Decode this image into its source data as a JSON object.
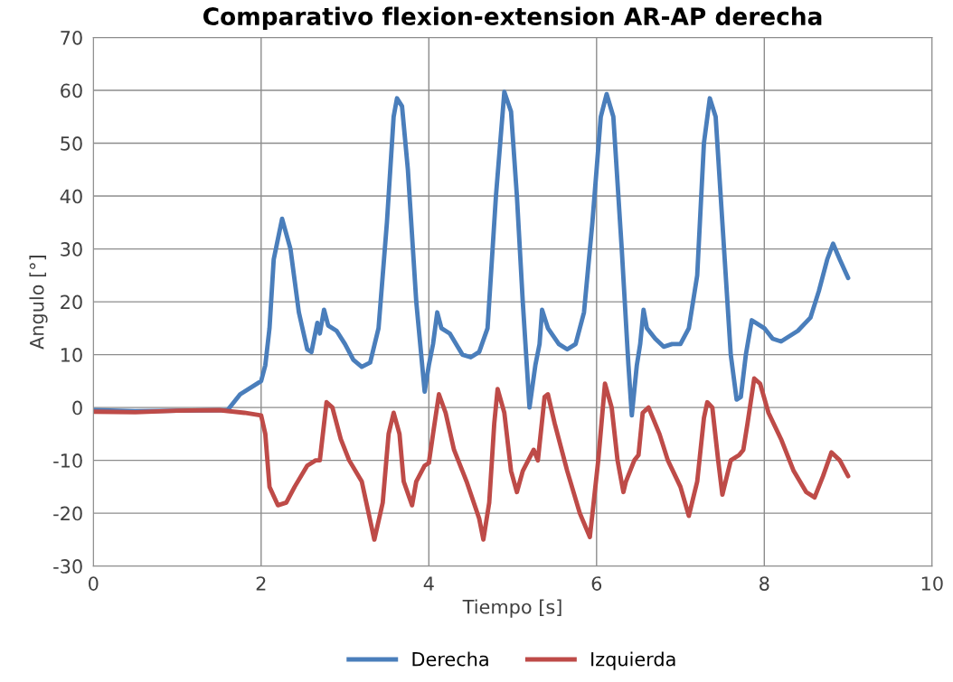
{
  "chart_data": {
    "type": "line",
    "title": "Comparativo flexion-extension AR-AP derecha",
    "xlabel": "Tiempo [s]",
    "ylabel": "Angulo [°]",
    "xlim": [
      0,
      10
    ],
    "xticks": [
      0,
      2,
      4,
      6,
      8,
      10
    ],
    "ylim": [
      -30,
      70
    ],
    "yticks": [
      -30,
      -20,
      -10,
      0,
      10,
      20,
      30,
      40,
      50,
      60,
      70
    ],
    "grid": true,
    "legend": "bottom",
    "marker": "none",
    "line_style": "solid",
    "series": [
      {
        "name": "Derecha",
        "color": "#4a7ebb",
        "x": [
          0,
          0.5,
          1,
          1.6,
          1.75,
          2.0,
          2.05,
          2.1,
          2.15,
          2.25,
          2.35,
          2.45,
          2.55,
          2.6,
          2.67,
          2.7,
          2.75,
          2.8,
          2.9,
          3.0,
          3.1,
          3.2,
          3.3,
          3.4,
          3.5,
          3.58,
          3.62,
          3.68,
          3.75,
          3.85,
          3.95,
          4.0,
          4.05,
          4.1,
          4.15,
          4.25,
          4.4,
          4.5,
          4.6,
          4.7,
          4.8,
          4.9,
          4.98,
          5.05,
          5.12,
          5.2,
          5.27,
          5.32,
          5.35,
          5.42,
          5.55,
          5.65,
          5.75,
          5.85,
          5.95,
          6.05,
          6.12,
          6.2,
          6.3,
          6.38,
          6.42,
          6.48,
          6.52,
          6.56,
          6.6,
          6.7,
          6.8,
          6.9,
          7.0,
          7.1,
          7.2,
          7.28,
          7.35,
          7.42,
          7.5,
          7.6,
          7.67,
          7.72,
          7.78,
          7.85,
          8.0,
          8.1,
          8.2,
          8.4,
          8.55,
          8.65,
          8.75,
          8.82,
          8.9,
          9.0
        ],
        "values": [
          -0.5,
          -0.7,
          -0.6,
          -0.5,
          2.5,
          5,
          8,
          15,
          28,
          35.7,
          30,
          18,
          11,
          10.5,
          16,
          14,
          18.5,
          15.5,
          14.5,
          12,
          9,
          7.7,
          8.5,
          15,
          35,
          55,
          58.5,
          57,
          45,
          20,
          3,
          8,
          12,
          18,
          15,
          14,
          10,
          9.5,
          10.5,
          15,
          40,
          59.7,
          56,
          40,
          20,
          0,
          8,
          12,
          18.5,
          15,
          12,
          11,
          12,
          18,
          35,
          55,
          59.3,
          55,
          30,
          8,
          -1.5,
          8,
          12,
          18.5,
          15,
          13,
          11.5,
          12,
          12,
          15,
          25,
          50,
          58.5,
          55,
          35,
          10,
          1.5,
          2,
          10,
          16.5,
          15,
          13,
          12.5,
          14.5,
          17,
          22,
          28,
          31,
          28,
          24.5
        ]
      },
      {
        "name": "Izquierda",
        "color": "#be4b48",
        "x": [
          0,
          0.5,
          1,
          1.5,
          1.8,
          2.0,
          2.05,
          2.1,
          2.2,
          2.3,
          2.4,
          2.55,
          2.65,
          2.7,
          2.78,
          2.85,
          2.95,
          3.05,
          3.2,
          3.35,
          3.45,
          3.52,
          3.58,
          3.65,
          3.7,
          3.8,
          3.85,
          3.95,
          4.0,
          4.05,
          4.12,
          4.2,
          4.3,
          4.45,
          4.6,
          4.65,
          4.72,
          4.78,
          4.82,
          4.9,
          4.98,
          5.05,
          5.12,
          5.25,
          5.3,
          5.38,
          5.42,
          5.5,
          5.65,
          5.8,
          5.92,
          6.02,
          6.1,
          6.18,
          6.25,
          6.32,
          6.35,
          6.45,
          6.5,
          6.55,
          6.62,
          6.75,
          6.85,
          7.0,
          7.1,
          7.2,
          7.28,
          7.32,
          7.38,
          7.45,
          7.5,
          7.6,
          7.7,
          7.75,
          7.8,
          7.88,
          7.95,
          8.05,
          8.2,
          8.35,
          8.5,
          8.6,
          8.7,
          8.8,
          8.9,
          9.0
        ],
        "values": [
          -0.8,
          -0.9,
          -0.6,
          -0.5,
          -1,
          -1.5,
          -5,
          -15,
          -18.5,
          -18,
          -15,
          -11,
          -10,
          -10,
          1,
          0,
          -6,
          -10,
          -14,
          -25,
          -18,
          -5,
          -1,
          -5,
          -14,
          -18.5,
          -14,
          -11,
          -10.5,
          -5,
          2.5,
          -1,
          -8,
          -14,
          -21,
          -25,
          -18,
          -3,
          3.5,
          -1,
          -12,
          -16,
          -12,
          -8,
          -10,
          2,
          2.5,
          -3,
          -12,
          -20,
          -24.5,
          -10,
          4.5,
          0,
          -10,
          -16,
          -14,
          -10,
          -9,
          -1,
          0,
          -5,
          -10,
          -15,
          -20.5,
          -14,
          -2,
          1,
          0,
          -10,
          -16.5,
          -10,
          -9,
          -8,
          -3,
          5.5,
          4.5,
          -1,
          -6,
          -12,
          -16,
          -17,
          -13,
          -8.5,
          -10,
          -13
        ]
      }
    ]
  }
}
